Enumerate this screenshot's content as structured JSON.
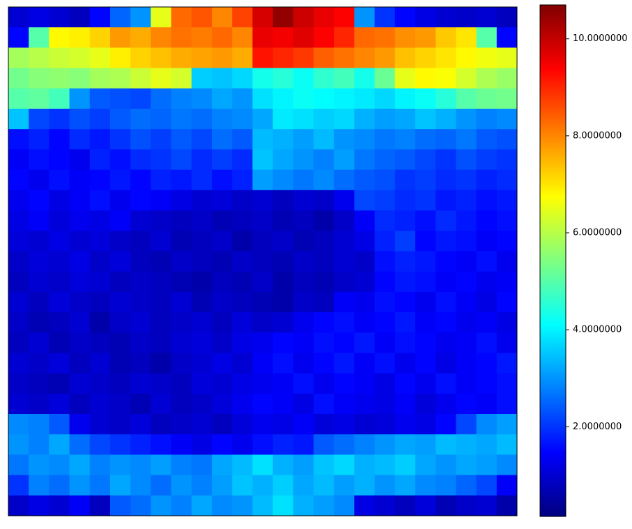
{
  "chart_data": {
    "type": "heatmap",
    "colormap": "jet",
    "clim": [
      0.15,
      10.7
    ],
    "cticks": [
      {
        "value": 2,
        "label": "2.0000000"
      },
      {
        "value": 4,
        "label": "4.0000000"
      },
      {
        "value": 6,
        "label": "6.0000000"
      },
      {
        "value": 8,
        "label": "8.0000000"
      },
      {
        "value": 10,
        "label": "10.0000000"
      }
    ],
    "z": [
      [
        1.0,
        1.2,
        1.0,
        0.8,
        1.5,
        2.5,
        3.0,
        6.5,
        8.3,
        8.5,
        8.0,
        8.7,
        9.8,
        10.5,
        9.9,
        9.6,
        9.4,
        3.0,
        2.0,
        1.5,
        1.2,
        1.0,
        0.9,
        1.0,
        0.8
      ],
      [
        1.5,
        5.0,
        6.8,
        6.9,
        7.2,
        7.8,
        7.6,
        8.0,
        8.2,
        8.1,
        8.3,
        8.0,
        9.6,
        9.5,
        9.7,
        9.4,
        9.0,
        8.3,
        8.2,
        7.9,
        7.8,
        7.3,
        7.0,
        5.0,
        1.5
      ],
      [
        5.8,
        6.0,
        6.2,
        6.3,
        6.5,
        6.9,
        7.2,
        7.4,
        7.6,
        7.7,
        7.8,
        7.6,
        9.2,
        9.0,
        8.8,
        8.4,
        8.2,
        8.0,
        7.8,
        7.4,
        7.2,
        7.0,
        6.8,
        6.6,
        6.5
      ],
      [
        5.3,
        5.5,
        5.6,
        5.5,
        5.8,
        5.9,
        6.2,
        6.5,
        6.3,
        3.6,
        3.5,
        3.7,
        4.3,
        4.5,
        4.2,
        4.6,
        4.8,
        4.3,
        5.2,
        6.5,
        6.8,
        6.7,
        6.3,
        5.9,
        5.7
      ],
      [
        5.0,
        5.1,
        4.8,
        3.0,
        2.4,
        2.3,
        2.2,
        2.6,
        2.8,
        2.9,
        3.2,
        3.0,
        3.8,
        4.0,
        4.2,
        4.1,
        4.0,
        3.9,
        3.7,
        4.0,
        4.2,
        4.5,
        5.0,
        5.2,
        5.3
      ],
      [
        3.5,
        2.2,
        2.0,
        2.3,
        2.1,
        2.4,
        2.6,
        2.5,
        2.7,
        2.6,
        2.8,
        2.9,
        3.2,
        3.9,
        3.8,
        3.6,
        3.7,
        3.3,
        3.1,
        3.2,
        3.5,
        3.3,
        3.0,
        2.8,
        2.9
      ],
      [
        1.6,
        1.8,
        1.5,
        1.9,
        1.7,
        2.0,
        2.3,
        2.1,
        2.4,
        2.2,
        2.6,
        2.4,
        3.4,
        3.3,
        3.1,
        3.4,
        3.0,
        2.9,
        2.7,
        2.8,
        2.6,
        2.5,
        2.7,
        2.4,
        2.3
      ],
      [
        1.4,
        1.6,
        1.5,
        1.3,
        1.8,
        1.6,
        1.9,
        2.0,
        2.2,
        1.9,
        2.1,
        1.9,
        3.5,
        3.2,
        3.0,
        2.8,
        3.1,
        2.7,
        2.5,
        2.4,
        2.2,
        2.0,
        2.3,
        2.1,
        2.0
      ],
      [
        1.5,
        1.3,
        1.6,
        1.4,
        1.5,
        1.7,
        1.5,
        1.8,
        1.7,
        1.9,
        1.6,
        1.8,
        3.1,
        2.9,
        2.7,
        2.9,
        2.6,
        2.4,
        2.3,
        2.0,
        2.1,
        1.9,
        2.0,
        1.8,
        1.9
      ],
      [
        1.3,
        1.5,
        1.2,
        1.4,
        1.6,
        1.3,
        1.5,
        1.4,
        1.2,
        1.0,
        1.1,
        0.9,
        1.0,
        0.8,
        1.0,
        0.9,
        1.3,
        2.2,
        2.1,
        1.9,
        2.0,
        1.7,
        1.8,
        1.6,
        1.7
      ],
      [
        1.2,
        1.4,
        1.1,
        1.3,
        1.2,
        1.4,
        1.0,
        0.9,
        0.8,
        0.9,
        0.7,
        0.8,
        0.9,
        0.7,
        0.8,
        0.6,
        0.9,
        1.4,
        1.9,
        1.8,
        1.6,
        1.9,
        1.7,
        1.5,
        1.6
      ],
      [
        1.1,
        1.0,
        1.2,
        1.0,
        1.1,
        0.9,
        0.8,
        1.0,
        0.7,
        0.8,
        0.9,
        0.6,
        0.8,
        0.9,
        0.7,
        0.8,
        1.0,
        1.2,
        1.8,
        2.1,
        1.5,
        1.7,
        1.6,
        1.4,
        1.5
      ],
      [
        0.9,
        1.1,
        1.0,
        1.2,
        0.9,
        1.1,
        0.8,
        0.7,
        0.9,
        0.8,
        0.7,
        0.9,
        0.8,
        0.7,
        0.9,
        0.8,
        1.0,
        0.9,
        1.6,
        1.8,
        1.7,
        1.5,
        1.4,
        1.6,
        1.3
      ],
      [
        0.8,
        1.0,
        0.9,
        1.1,
        1.0,
        0.8,
        0.9,
        0.8,
        0.7,
        0.6,
        0.8,
        0.7,
        0.9,
        0.6,
        0.8,
        0.7,
        0.9,
        1.0,
        1.5,
        1.7,
        1.6,
        1.4,
        1.5,
        1.3,
        1.4
      ],
      [
        1.0,
        0.8,
        1.1,
        0.9,
        0.8,
        1.0,
        0.9,
        0.8,
        1.0,
        0.7,
        0.9,
        0.8,
        0.7,
        0.6,
        0.9,
        0.8,
        1.4,
        1.3,
        1.6,
        1.5,
        1.3,
        1.6,
        1.4,
        1.2,
        1.5
      ],
      [
        0.9,
        0.7,
        0.8,
        1.0,
        0.6,
        0.9,
        1.0,
        0.8,
        0.9,
        1.0,
        0.8,
        1.1,
        0.9,
        1.0,
        1.3,
        1.5,
        1.6,
        1.4,
        1.5,
        1.7,
        1.4,
        1.5,
        1.3,
        1.4,
        1.2
      ],
      [
        0.8,
        1.0,
        0.7,
        0.9,
        0.8,
        0.7,
        0.9,
        0.8,
        1.0,
        1.1,
        0.9,
        1.2,
        1.3,
        1.5,
        1.4,
        1.6,
        1.5,
        1.7,
        1.4,
        1.6,
        1.5,
        1.3,
        1.4,
        1.6,
        1.3
      ],
      [
        1.0,
        0.9,
        1.1,
        0.8,
        1.0,
        0.7,
        0.8,
        0.6,
        0.9,
        1.0,
        1.2,
        1.0,
        1.4,
        1.6,
        1.3,
        1.5,
        1.7,
        1.4,
        1.6,
        1.3,
        1.5,
        1.2,
        1.4,
        1.5,
        1.7
      ],
      [
        0.9,
        0.8,
        0.7,
        1.0,
        0.9,
        0.8,
        1.0,
        0.9,
        0.8,
        1.1,
        1.0,
        1.2,
        1.3,
        1.4,
        1.6,
        1.3,
        1.5,
        1.4,
        1.2,
        1.5,
        1.3,
        1.6,
        1.4,
        1.5,
        1.6
      ],
      [
        1.0,
        0.9,
        1.1,
        0.8,
        1.0,
        0.9,
        0.7,
        1.0,
        0.8,
        0.9,
        1.1,
        1.3,
        1.5,
        1.4,
        1.2,
        1.6,
        1.4,
        1.3,
        1.2,
        1.4,
        1.1,
        1.3,
        1.5,
        1.4,
        1.6
      ],
      [
        2.9,
        2.8,
        2.4,
        1.3,
        1.0,
        0.9,
        1.1,
        0.8,
        0.9,
        1.0,
        0.8,
        1.1,
        1.3,
        1.2,
        1.4,
        1.1,
        1.2,
        1.0,
        1.1,
        1.3,
        1.2,
        1.5,
        2.2,
        2.9,
        3.1
      ],
      [
        3.0,
        2.8,
        3.2,
        2.6,
        2.2,
        2.0,
        1.8,
        1.6,
        1.4,
        1.2,
        1.5,
        1.3,
        1.6,
        1.8,
        1.7,
        2.4,
        2.6,
        2.8,
        3.0,
        3.2,
        3.1,
        3.4,
        3.3,
        3.2,
        3.4
      ],
      [
        2.7,
        3.0,
        2.9,
        3.2,
        2.8,
        3.0,
        2.9,
        3.1,
        2.8,
        2.7,
        3.2,
        3.4,
        3.8,
        3.3,
        3.1,
        3.5,
        3.7,
        3.3,
        3.4,
        3.6,
        3.2,
        3.0,
        3.2,
        3.1,
        2.9
      ],
      [
        2.0,
        2.8,
        2.6,
        3.0,
        2.7,
        3.2,
        2.9,
        2.6,
        3.0,
        2.8,
        3.1,
        3.5,
        3.3,
        3.6,
        3.2,
        3.4,
        3.1,
        3.3,
        3.0,
        3.2,
        2.9,
        2.8,
        2.5,
        2.2,
        1.4
      ],
      [
        0.9,
        1.2,
        1.0,
        1.4,
        0.8,
        2.4,
        2.6,
        3.0,
        2.8,
        3.2,
        2.9,
        3.0,
        3.4,
        3.8,
        3.3,
        3.1,
        2.9,
        1.2,
        1.0,
        0.8,
        1.1,
        0.7,
        0.9,
        1.0,
        0.6
      ]
    ]
  }
}
